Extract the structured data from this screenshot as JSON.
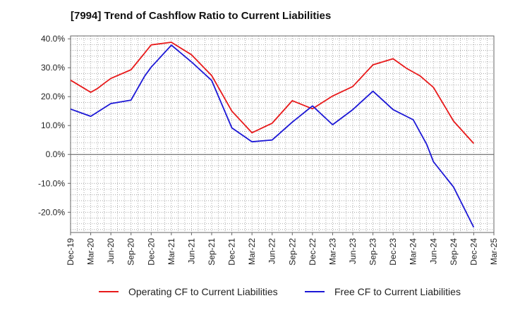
{
  "chart_data": {
    "type": "line",
    "title": "[7994]  Trend of Cashflow Ratio to Current Liabilities",
    "x_ticks": [
      "Dec-19",
      "Mar-20",
      "Jun-20",
      "Sep-20",
      "Dec-20",
      "Mar-21",
      "Jun-21",
      "Sep-21",
      "Dec-21",
      "Mar-22",
      "Jun-22",
      "Sep-22",
      "Dec-22",
      "Mar-23",
      "Jun-23",
      "Sep-23",
      "Dec-23",
      "Mar-24",
      "Jun-24",
      "Sep-24",
      "Dec-24",
      "Mar-25"
    ],
    "y_ticks": [
      "40.0%",
      "30.0%",
      "20.0%",
      "10.0%",
      "0.0%",
      "-10.0%",
      "-20.0%"
    ],
    "y_tick_values": [
      40,
      30,
      20,
      10,
      0,
      -10,
      -20
    ],
    "ylim": [
      -27,
      41
    ],
    "grid": true,
    "legend_position": "bottom",
    "series": [
      {
        "name": "Operating CF to Current Liabilities",
        "color": "#e8191a",
        "points": [
          {
            "x": "Dec-19",
            "y": 25.7
          },
          {
            "x": "Mar-20",
            "y": 21.5
          },
          {
            "x": "Apr-20",
            "y": 22.8
          },
          {
            "x": "May-20",
            "y": 24.6
          },
          {
            "x": "Jun-20",
            "y": 26.3
          },
          {
            "x": "Sep-20",
            "y": 29.3
          },
          {
            "x": "Nov-20",
            "y": 35.0
          },
          {
            "x": "Dec-20",
            "y": 37.9
          },
          {
            "x": "Mar-21",
            "y": 38.8
          },
          {
            "x": "Jun-21",
            "y": 34.5
          },
          {
            "x": "Sep-21",
            "y": 27.3
          },
          {
            "x": "Dec-21",
            "y": 15.0
          },
          {
            "x": "Mar-22",
            "y": 7.5
          },
          {
            "x": "Jun-22",
            "y": 10.8
          },
          {
            "x": "Sep-22",
            "y": 18.6
          },
          {
            "x": "Dec-22",
            "y": 15.8
          },
          {
            "x": "Mar-23",
            "y": 20.2
          },
          {
            "x": "Jun-23",
            "y": 23.5
          },
          {
            "x": "Sep-23",
            "y": 31.0
          },
          {
            "x": "Dec-23",
            "y": 33.1
          },
          {
            "x": "Feb-24",
            "y": 29.8
          },
          {
            "x": "Apr-24",
            "y": 27.2
          },
          {
            "x": "Jun-24",
            "y": 23.2
          },
          {
            "x": "Sep-24",
            "y": 11.5
          },
          {
            "x": "Dec-24",
            "y": 3.8
          }
        ]
      },
      {
        "name": "Free CF to Current Liabilities",
        "color": "#1c17d6",
        "points": [
          {
            "x": "Dec-19",
            "y": 15.7
          },
          {
            "x": "Mar-20",
            "y": 13.2
          },
          {
            "x": "Jun-20",
            "y": 17.6
          },
          {
            "x": "Sep-20",
            "y": 18.8
          },
          {
            "x": "Nov-20",
            "y": 27.0
          },
          {
            "x": "Dec-20",
            "y": 30.2
          },
          {
            "x": "Mar-21",
            "y": 37.8
          },
          {
            "x": "Jun-21",
            "y": 32.0
          },
          {
            "x": "Sep-21",
            "y": 25.6
          },
          {
            "x": "Dec-21",
            "y": 9.2
          },
          {
            "x": "Mar-22",
            "y": 4.4
          },
          {
            "x": "Jun-22",
            "y": 5.0
          },
          {
            "x": "Sep-22",
            "y": 11.2
          },
          {
            "x": "Dec-22",
            "y": 16.8
          },
          {
            "x": "Mar-23",
            "y": 10.3
          },
          {
            "x": "Jun-23",
            "y": 15.5
          },
          {
            "x": "Sep-23",
            "y": 21.9
          },
          {
            "x": "Dec-23",
            "y": 15.5
          },
          {
            "x": "Mar-24",
            "y": 12.0
          },
          {
            "x": "May-24",
            "y": 3.5
          },
          {
            "x": "Jun-24",
            "y": -2.5
          },
          {
            "x": "Sep-24",
            "y": -11.3
          },
          {
            "x": "Dec-24",
            "y": -25.2
          }
        ]
      }
    ]
  }
}
